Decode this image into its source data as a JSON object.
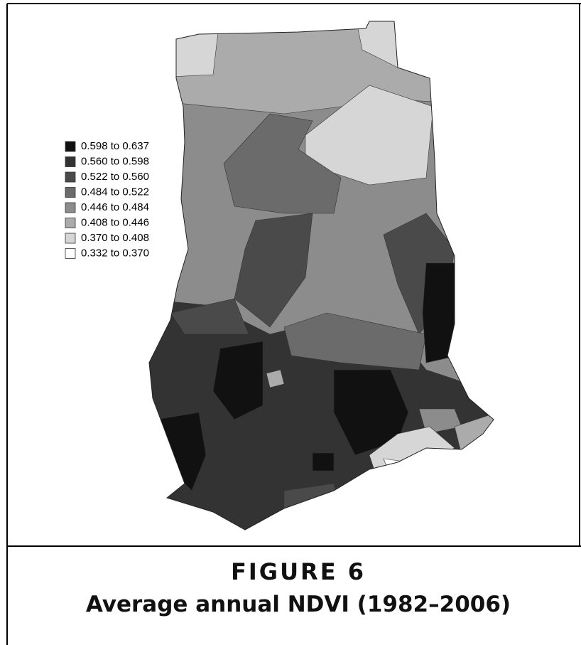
{
  "legend": {
    "items": [
      {
        "label": "0.598 to 0.637",
        "color": "#111111"
      },
      {
        "label": "0.560 to 0.598",
        "color": "#333333"
      },
      {
        "label": "0.522 to 0.560",
        "color": "#4a4a4a"
      },
      {
        "label": "0.484 to 0.522",
        "color": "#6b6b6b"
      },
      {
        "label": "0.446 to 0.484",
        "color": "#8c8c8c"
      },
      {
        "label": "0.408 to 0.446",
        "color": "#ababab"
      },
      {
        "label": "0.370 to 0.408",
        "color": "#d6d6d6"
      },
      {
        "label": "0.332 to 0.370",
        "color": "#ffffff"
      }
    ]
  },
  "figure": {
    "number": "FIGURE 6",
    "caption": "Average annual NDVI (1982–2006)"
  }
}
